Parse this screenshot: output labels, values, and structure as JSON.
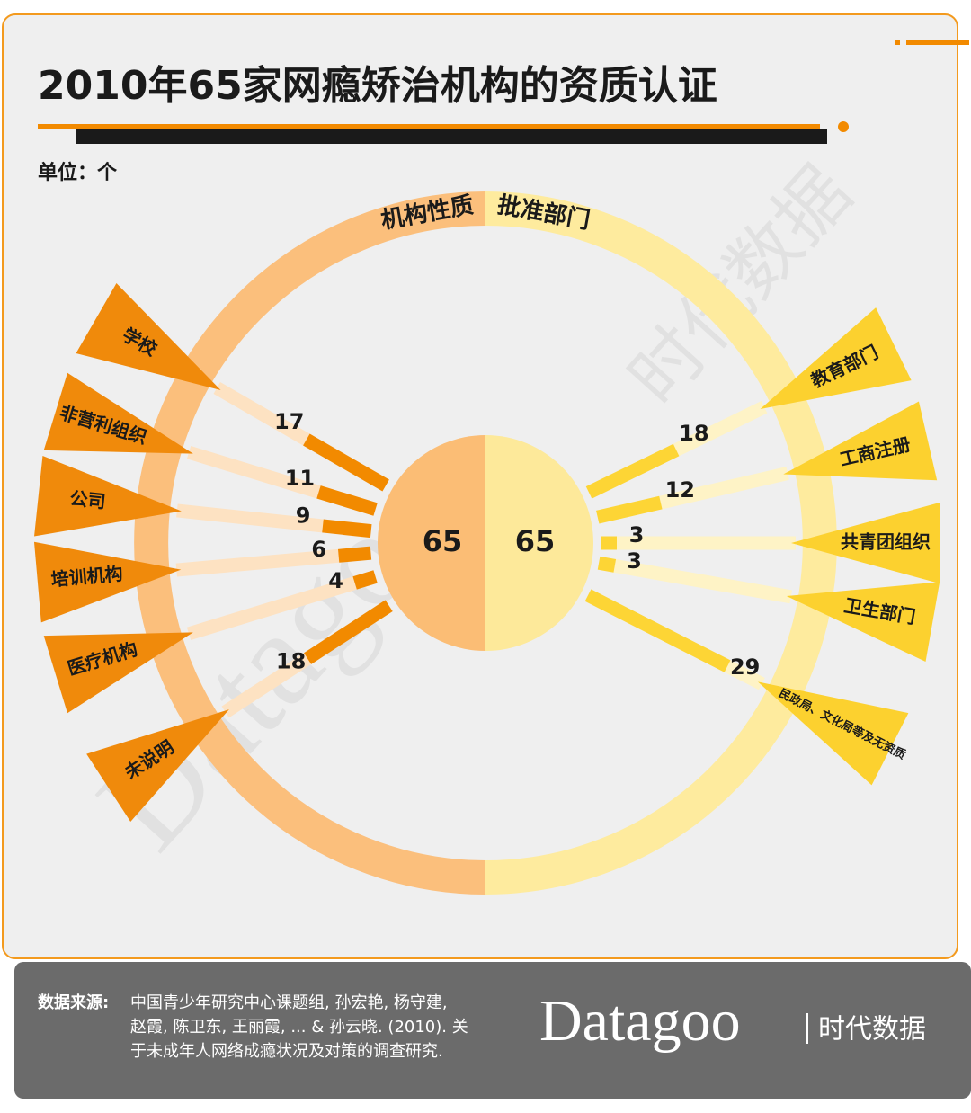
{
  "chart_data": {
    "type": "radial-bar",
    "title": "2010年65家网瘾矫治机构的资质认证",
    "unit": "单位：个",
    "series": [
      {
        "name": "机构性质",
        "total": 65,
        "color": "#f28a00",
        "ring_color": "#fbbf7c",
        "core_color": "#fbbd75",
        "label_color": "#f08a0b",
        "link_color": "#fde2c2",
        "categories": [
          "学校",
          "非营利组织",
          "公司",
          "培训机构",
          "医疗机构",
          "未说明"
        ],
        "values": [
          17,
          11,
          9,
          6,
          4,
          18
        ]
      },
      {
        "name": "批准部门",
        "total": 65,
        "color": "#fdd535",
        "ring_color": "#feeb9e",
        "core_color": "#fde99a",
        "label_color": "#fcd12f",
        "link_color": "#fef3c6",
        "categories": [
          "教育部门",
          "工商注册",
          "共青团组织",
          "卫生部门",
          "民政局、文化局等及无资质"
        ],
        "values": [
          18,
          12,
          3,
          3,
          29
        ]
      }
    ],
    "source_label": "数据来源:",
    "source": [
      "中国青少年研究中心课题组, 孙宏艳, 杨守建,",
      "赵霞, 陈卫东, 王丽霞, ... & 孙云晓. (2010). 关",
      "于未成年人网络成瘾状况及对策的调查研究."
    ],
    "brand": "Datagoo",
    "brand_cn": "时代数据"
  }
}
